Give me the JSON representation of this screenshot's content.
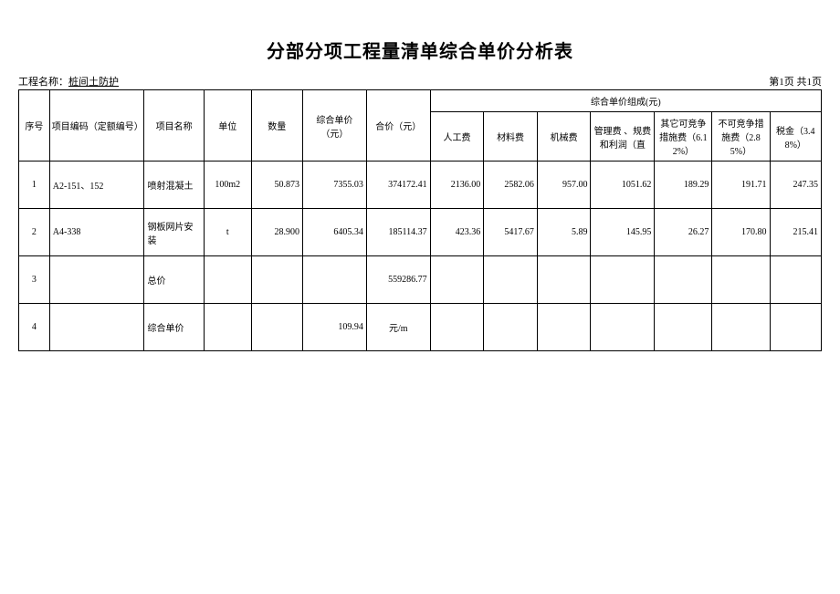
{
  "title": "分部分项工程量清单综合单价分析表",
  "projectLabel": "工程名称：",
  "projectName": "桩间土防护",
  "pageInfo": "第1页 共1页",
  "groupHeader": "综合单价组成(元)",
  "headers": {
    "seq": "序号",
    "code": "项目编码（定额编号）",
    "name": "项目名称",
    "unit": "单位",
    "qty": "数量",
    "uprice": "综合单价 （元）",
    "total": "合价（元）",
    "labor": "人工费",
    "material": "材料费",
    "machine": "机械费",
    "mgmt": "管理费 、规费\n和利润（直",
    "other": "其它可竞争措施费（6.12%）",
    "uncomp": "不可竞争措施费（2.85%）",
    "tax": "税金（3.48%）"
  },
  "rows": [
    {
      "seq": "1",
      "code": "A2-151、152",
      "name": "喷射混凝土",
      "unit": "100m2",
      "qty": "50.873",
      "uprice": "7355.03",
      "total": "374172.41",
      "labor": "2136.00",
      "material": "2582.06",
      "machine": "957.00",
      "mgmt": "1051.62",
      "other": "189.29",
      "uncomp": "191.71",
      "tax": "247.35"
    },
    {
      "seq": "2",
      "code": "A4-338",
      "name": "钢板网片安装",
      "unit": "t",
      "qty": "28.900",
      "uprice": "6405.34",
      "total": "185114.37",
      "labor": "423.36",
      "material": "5417.67",
      "machine": "5.89",
      "mgmt": "145.95",
      "other": "26.27",
      "uncomp": "170.80",
      "tax": "215.41"
    },
    {
      "seq": "3",
      "code": "",
      "name": "总价",
      "unit": "",
      "qty": "",
      "uprice": "",
      "total": "559286.77",
      "labor": "",
      "material": "",
      "machine": "",
      "mgmt": "",
      "other": "",
      "uncomp": "",
      "tax": ""
    },
    {
      "seq": "4",
      "code": "",
      "name": "综合单价",
      "unit": "",
      "qty": "",
      "uprice": "109.94",
      "total": "元/m",
      "labor": "",
      "material": "",
      "machine": "",
      "mgmt": "",
      "other": "",
      "uncomp": "",
      "tax": ""
    }
  ]
}
